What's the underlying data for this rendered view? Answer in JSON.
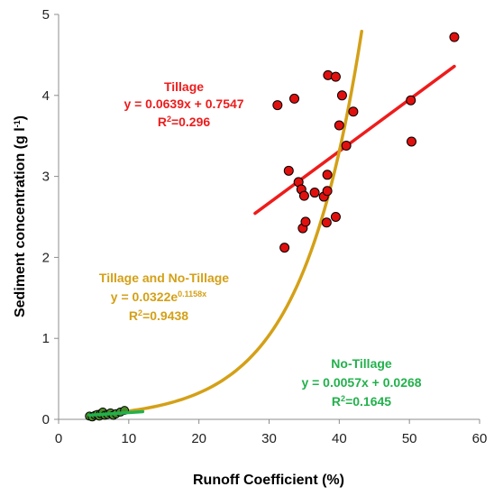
{
  "chart_data": {
    "type": "scatter",
    "xlabel": "Runoff Coefficient (%)",
    "ylabel_main": "Sediment concentration (g l",
    "ylabel_sup": "-1",
    "ylabel_close": ")",
    "xlim": [
      0,
      60
    ],
    "ylim": [
      0,
      5
    ],
    "xticks": [
      0,
      10,
      20,
      30,
      40,
      50,
      60
    ],
    "yticks": [
      0,
      1,
      2,
      3,
      4,
      5
    ],
    "grid": false,
    "colors": {
      "tillage": "#ee1c1c",
      "no_tillage": "#22b14c",
      "combined": "#d4a017",
      "point_fill": "#e0100f",
      "point_edge": "#000000",
      "nt_point_fill": "#4a8a2a"
    },
    "series": [
      {
        "id": "tillage",
        "points": [
          [
            31.2,
            3.88
          ],
          [
            32.2,
            2.12
          ],
          [
            32.8,
            3.07
          ],
          [
            33.6,
            3.96
          ],
          [
            34.2,
            2.93
          ],
          [
            34.6,
            2.84
          ],
          [
            34.8,
            2.36
          ],
          [
            35.0,
            2.76
          ],
          [
            35.2,
            2.44
          ],
          [
            36.5,
            2.8
          ],
          [
            37.8,
            2.75
          ],
          [
            38.2,
            2.43
          ],
          [
            38.3,
            3.02
          ],
          [
            38.3,
            2.82
          ],
          [
            38.4,
            4.25
          ],
          [
            39.5,
            4.23
          ],
          [
            39.5,
            2.5
          ],
          [
            40.0,
            3.63
          ],
          [
            40.4,
            4.0
          ],
          [
            41.0,
            3.38
          ],
          [
            42.0,
            3.8
          ],
          [
            50.2,
            3.94
          ],
          [
            50.3,
            3.43
          ],
          [
            56.4,
            4.72
          ]
        ]
      },
      {
        "id": "no_tillage",
        "points": [
          [
            4.4,
            0.04
          ],
          [
            4.8,
            0.03
          ],
          [
            5.2,
            0.05
          ],
          [
            5.5,
            0.06
          ],
          [
            5.8,
            0.04
          ],
          [
            6.0,
            0.07
          ],
          [
            6.3,
            0.09
          ],
          [
            6.6,
            0.05
          ],
          [
            7.0,
            0.06
          ],
          [
            7.4,
            0.08
          ],
          [
            7.8,
            0.05
          ],
          [
            8.2,
            0.07
          ],
          [
            8.8,
            0.09
          ],
          [
            9.4,
            0.11
          ]
        ]
      }
    ],
    "trendlines": [
      {
        "id": "tillage",
        "kind": "linear",
        "slope": 0.0639,
        "intercept": 0.7547,
        "x_range": [
          28,
          56.4
        ]
      },
      {
        "id": "no_tillage",
        "kind": "linear",
        "slope": 0.0057,
        "intercept": 0.0268,
        "x_range": [
          4.4,
          12
        ]
      },
      {
        "id": "combined",
        "kind": "exponential",
        "a": 0.0322,
        "b": 0.1158,
        "x_range": [
          4.5,
          43.2
        ]
      }
    ],
    "annotations": {
      "tillage": {
        "title": "Tillage",
        "equation": "y = 0.0639x + 0.7547",
        "r2_label": "R",
        "r2_sup": "2",
        "r2_value": "=0.296"
      },
      "combined": {
        "title": "Tillage and No-Tillage",
        "eq_prefix": "y = 0.0322e",
        "eq_sup": "0.1158x",
        "r2_label": "R",
        "r2_sup": "2",
        "r2_value": "=0.9438"
      },
      "no_tillage": {
        "title": "No-Tillage",
        "equation": "y = 0.0057x + 0.0268",
        "r2_label": "R",
        "r2_sup": "2",
        "r2_value": "=0.1645"
      }
    }
  }
}
